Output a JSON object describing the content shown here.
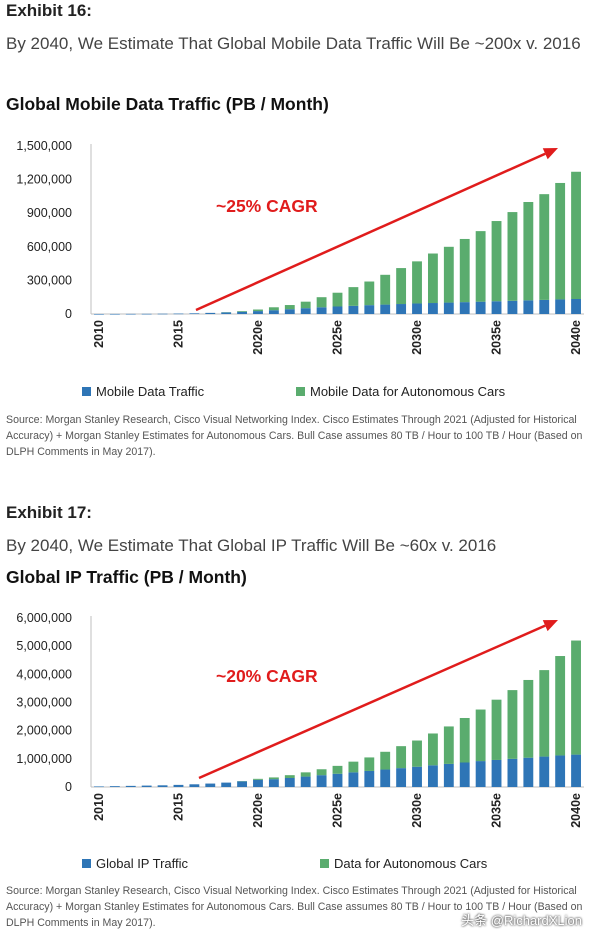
{
  "exhibits": [
    {
      "label": "Exhibit 16:",
      "subtitle": "By 2040, We Estimate That Global Mobile Data Traffic Will Be ~200x v. 2016",
      "title": "Global Mobile Data Traffic (PB / Month)",
      "source": "Source: Morgan Stanley Research, Cisco Visual Networking Index. Cisco Estimates Through 2021 (Adjusted for Historical Accuracy) + Morgan Stanley Estimates for Autonomous Cars. Bull Case assumes 80 TB / Hour to 100 TB / Hour (Based on DLPH Comments in May 2017)."
    },
    {
      "label": "Exhibit 17:",
      "subtitle": "By 2040, We Estimate That Global IP Traffic Will Be ~60x v. 2016",
      "title": "Global IP Traffic (PB / Month)",
      "source": "Source: Morgan Stanley Research, Cisco Visual Networking Index. Cisco Estimates Through 2021 (Adjusted for Historical Accuracy) + Morgan Stanley Estimates for Autonomous Cars. Bull Case assumes 80 TB / Hour to 100 TB / Hour (Based on DLPH Comments in May 2017)."
    }
  ],
  "watermark": "头条 @RichardXLion",
  "colors": {
    "base": "#2e75b6",
    "cars": "#5aac6e",
    "arrow": "#e01c1c",
    "axis": "#bfbfbf"
  },
  "chart_data": [
    {
      "type": "bar",
      "stacked": true,
      "title": "Global Mobile Data Traffic (PB / Month)",
      "categories": [
        "2010",
        "2011",
        "2012",
        "2013",
        "2014",
        "2015",
        "2016",
        "2017",
        "2018",
        "2019",
        "2020e",
        "2021e",
        "2022e",
        "2023e",
        "2024e",
        "2025e",
        "2026e",
        "2027e",
        "2028e",
        "2029e",
        "2030e",
        "2031e",
        "2032e",
        "2033e",
        "2034e",
        "2035e",
        "2036e",
        "2037e",
        "2038e",
        "2039e",
        "2040e"
      ],
      "xtick_labels": [
        "2010",
        "2015",
        "2020e",
        "2025e",
        "2030e",
        "2035e",
        "2040e"
      ],
      "yticks": [
        0,
        300000,
        600000,
        900000,
        1200000,
        1500000
      ],
      "ytick_labels": [
        "0",
        "300,000",
        "600,000",
        "900,000",
        "1,200,000",
        "1,500,000"
      ],
      "ylim": [
        0,
        1500000
      ],
      "series": [
        {
          "name": "Mobile Data Traffic",
          "values": [
            200,
            600,
            1000,
            1500,
            2500,
            3700,
            6000,
            10000,
            14000,
            20000,
            26000,
            34000,
            43000,
            52000,
            60000,
            67000,
            73000,
            79000,
            84000,
            89000,
            94000,
            98000,
            102000,
            106000,
            110000,
            114000,
            118000,
            122000,
            126000,
            130000,
            134000
          ]
        },
        {
          "name": "Mobile Data for Autonomous Cars",
          "values": [
            0,
            0,
            0,
            0,
            0,
            0,
            0,
            0,
            2000,
            6000,
            14000,
            26000,
            37000,
            58000,
            90000,
            123000,
            167000,
            211000,
            266000,
            321000,
            376000,
            442000,
            498000,
            564000,
            630000,
            716000,
            792000,
            878000,
            944000,
            1040000,
            1136000
          ]
        }
      ],
      "annotation": "~25% CAGR",
      "legend_position": "bottom"
    },
    {
      "type": "bar",
      "stacked": true,
      "title": "Global IP Traffic (PB / Month)",
      "categories": [
        "2010",
        "2011",
        "2012",
        "2013",
        "2014",
        "2015",
        "2016",
        "2017",
        "2018",
        "2019",
        "2020e",
        "2021e",
        "2022e",
        "2023e",
        "2024e",
        "2025e",
        "2026e",
        "2027e",
        "2028e",
        "2029e",
        "2030e",
        "2031e",
        "2032e",
        "2033e",
        "2034e",
        "2035e",
        "2036e",
        "2037e",
        "2038e",
        "2039e",
        "2040e"
      ],
      "xtick_labels": [
        "2010",
        "2015",
        "2020e",
        "2025e",
        "2030e",
        "2035e",
        "2040e"
      ],
      "yticks": [
        0,
        1000000,
        2000000,
        3000000,
        4000000,
        5000000,
        6000000
      ],
      "ytick_labels": [
        "0",
        "1,000,000",
        "2,000,000",
        "3,000,000",
        "4,000,000",
        "5,000,000",
        "6,000,000"
      ],
      "ylim": [
        0,
        6000000
      ],
      "series": [
        {
          "name": "Global IP Traffic",
          "values": [
            20000,
            30000,
            40000,
            50000,
            60000,
            75000,
            96000,
            122000,
            156000,
            201000,
            254000,
            278000,
            320000,
            370000,
            420000,
            470000,
            520000,
            570000,
            620000,
            670000,
            720000,
            770000,
            820000,
            870000,
            920000,
            960000,
            1000000,
            1040000,
            1080000,
            1120000,
            1150000
          ]
        },
        {
          "name": "Data for Autonomous Cars",
          "values": [
            0,
            0,
            0,
            0,
            0,
            0,
            0,
            0,
            0,
            9000,
            36000,
            62000,
            100000,
            150000,
            210000,
            280000,
            380000,
            480000,
            630000,
            780000,
            930000,
            1130000,
            1330000,
            1580000,
            1830000,
            2140000,
            2440000,
            2760000,
            3070000,
            3530000,
            4050000
          ]
        }
      ],
      "annotation": "~20% CAGR",
      "legend_position": "bottom"
    }
  ]
}
